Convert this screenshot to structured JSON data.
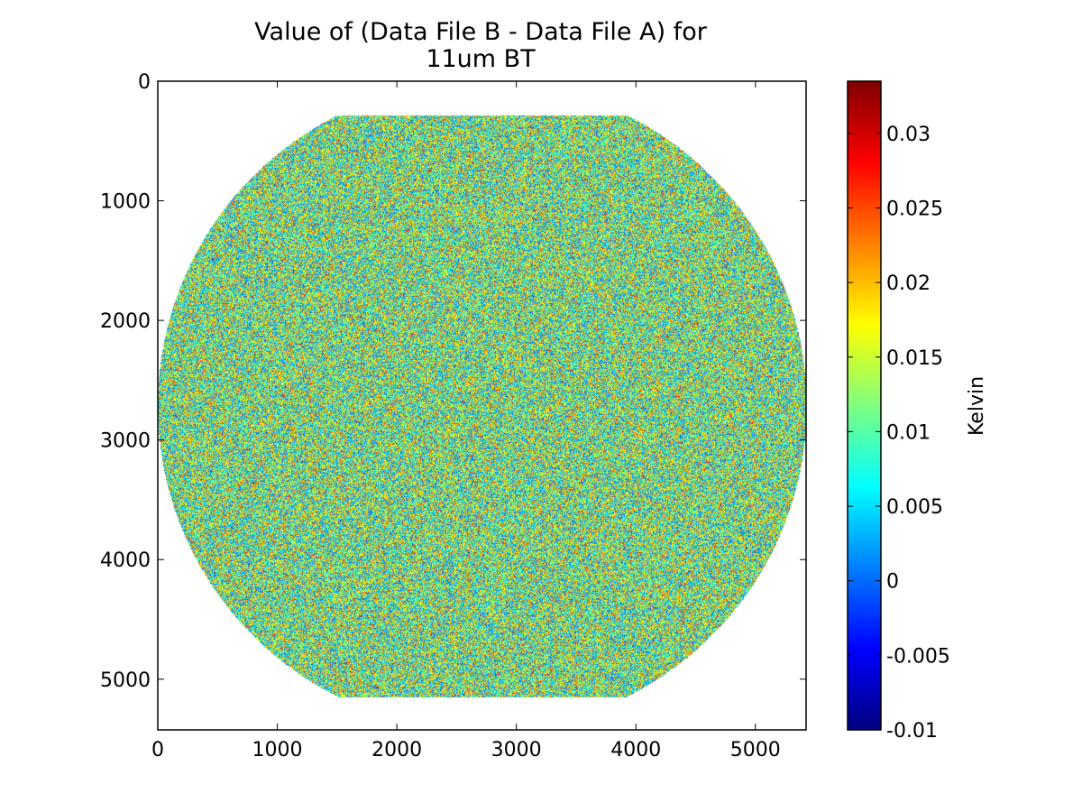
{
  "chart_data": {
    "type": "heatmap",
    "title": "Value of (Data File B - Data File A) for\n11um BT",
    "title_lines": [
      "Value of (Data File B - Data File A) for",
      "11um BT"
    ],
    "xlabel": "",
    "ylabel": "",
    "xlim": [
      0,
      5424
    ],
    "ylim": [
      5424,
      0
    ],
    "x_ticks": [
      0,
      1000,
      2000,
      3000,
      4000,
      5000
    ],
    "y_ticks": [
      0,
      1000,
      2000,
      3000,
      4000,
      5000
    ],
    "x_tick_labels": [
      "0",
      "1000",
      "2000",
      "3000",
      "4000",
      "5000"
    ],
    "y_tick_labels": [
      "0",
      "1000",
      "2000",
      "3000",
      "4000",
      "5000"
    ],
    "colormap": "jet",
    "colorbar": {
      "label": "Kelvin",
      "range": [
        -0.01,
        0.0335
      ],
      "ticks": [
        -0.01,
        -0.005,
        0,
        0.005,
        0.01,
        0.015,
        0.02,
        0.025,
        0.03
      ],
      "tick_labels": [
        "-0.01",
        "-0.005",
        "0",
        "0.005",
        "0.01",
        "0.015",
        "0.02",
        "0.025",
        "0.03"
      ]
    },
    "data_region": {
      "shape": "full earth disk clipped top and bottom",
      "center": [
        2712,
        2712
      ],
      "radius": 2715,
      "row_min": 280,
      "row_max": 5150
    },
    "grid": false,
    "description_of_values": "noise-like differences distributed across the full range of the color scale"
  },
  "colors": {
    "jet": [
      "#00007f",
      "#0000ff",
      "#007fff",
      "#00ffff",
      "#7fff7f",
      "#ffff00",
      "#ff7f00",
      "#ff0000",
      "#7f0000"
    ],
    "axes": "#000000",
    "background": "#ffffff"
  }
}
